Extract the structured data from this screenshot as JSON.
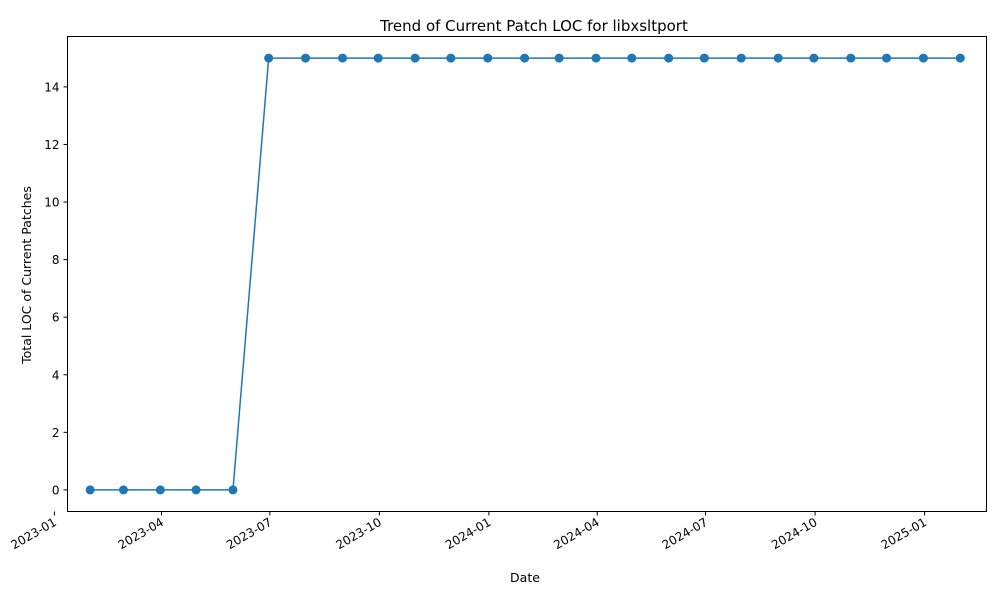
{
  "chart_data": {
    "type": "line",
    "title": "Trend of Current Patch LOC for libxsltport",
    "xlabel": "Date",
    "ylabel": "Total LOC of Current Patches",
    "xlim": [
      "2023-01-12",
      "2025-02-22"
    ],
    "ylim": [
      -0.75,
      15.75
    ],
    "grid": false,
    "line_color": "#1f77b4",
    "marker": "circle",
    "x_ticks": [
      "2023-01",
      "2023-04",
      "2023-07",
      "2023-10",
      "2024-01",
      "2024-04",
      "2024-07",
      "2024-10",
      "2025-01"
    ],
    "y_ticks": [
      "0",
      "2",
      "4",
      "6",
      "8",
      "10",
      "12",
      "14"
    ],
    "series": [
      {
        "x": [
          "2023-01-31",
          "2023-02-28",
          "2023-03-31",
          "2023-04-30",
          "2023-05-31",
          "2023-06-30",
          "2023-07-31",
          "2023-08-31",
          "2023-09-30",
          "2023-10-31",
          "2023-11-30",
          "2023-12-31",
          "2024-01-31",
          "2024-02-29",
          "2024-03-31",
          "2024-04-30",
          "2024-05-31",
          "2024-06-30",
          "2024-07-31",
          "2024-08-31",
          "2024-09-30",
          "2024-10-31",
          "2024-11-30",
          "2024-12-31",
          "2025-01-31"
        ],
        "values": [
          0,
          0,
          0,
          0,
          0,
          15,
          15,
          15,
          15,
          15,
          15,
          15,
          15,
          15,
          15,
          15,
          15,
          15,
          15,
          15,
          15,
          15,
          15,
          15,
          15
        ]
      }
    ]
  }
}
